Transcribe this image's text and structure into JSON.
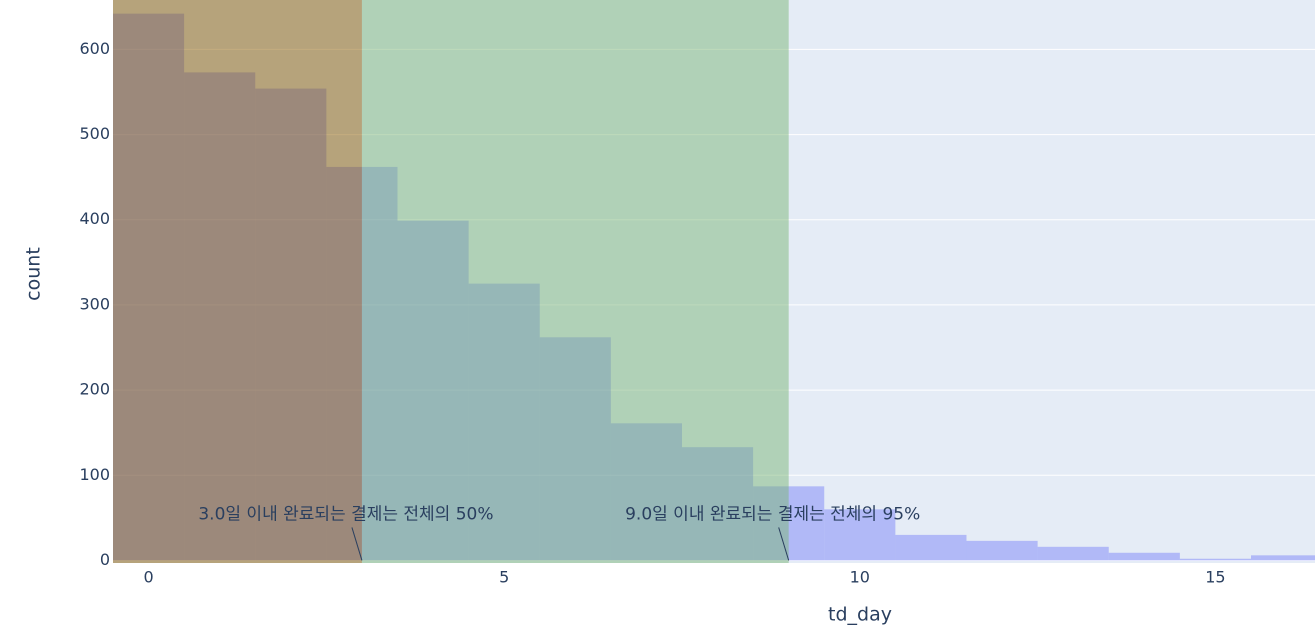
{
  "chart_data": {
    "type": "histogram",
    "x_label": "td_day",
    "y_label": "count",
    "bins": [
      -0.5,
      0.5,
      1.5,
      2.5,
      3.5,
      4.5,
      5.5,
      6.5,
      7.5,
      8.5,
      9.5,
      10.5,
      11.5,
      12.5,
      13.5,
      14.5,
      15.5,
      16.5
    ],
    "values": [
      642,
      573,
      554,
      462,
      399,
      325,
      262,
      161,
      133,
      87,
      60,
      30,
      23,
      16,
      9,
      2,
      6
    ],
    "color": "#636efa",
    "xlim": [
      -0.5,
      16.4
    ],
    "ylim": [
      -3,
      658
    ],
    "xticks": [
      0,
      5,
      10,
      15
    ],
    "yticks": [
      0,
      100,
      200,
      300,
      400,
      500,
      600
    ],
    "grid": true,
    "regions": [
      {
        "x0": -0.5,
        "x1": 3,
        "color": "#875a00"
      },
      {
        "x0": 3,
        "x1": 9,
        "color": "#7bb678"
      }
    ],
    "annotations": [
      {
        "x": 3,
        "y": 0,
        "text": "3.0일 이내 완료되는 결제는 전체의 50%"
      },
      {
        "x": 9,
        "y": 0,
        "text": "9.0일 이내 완료되는 결제는 전체의 95%"
      }
    ]
  }
}
